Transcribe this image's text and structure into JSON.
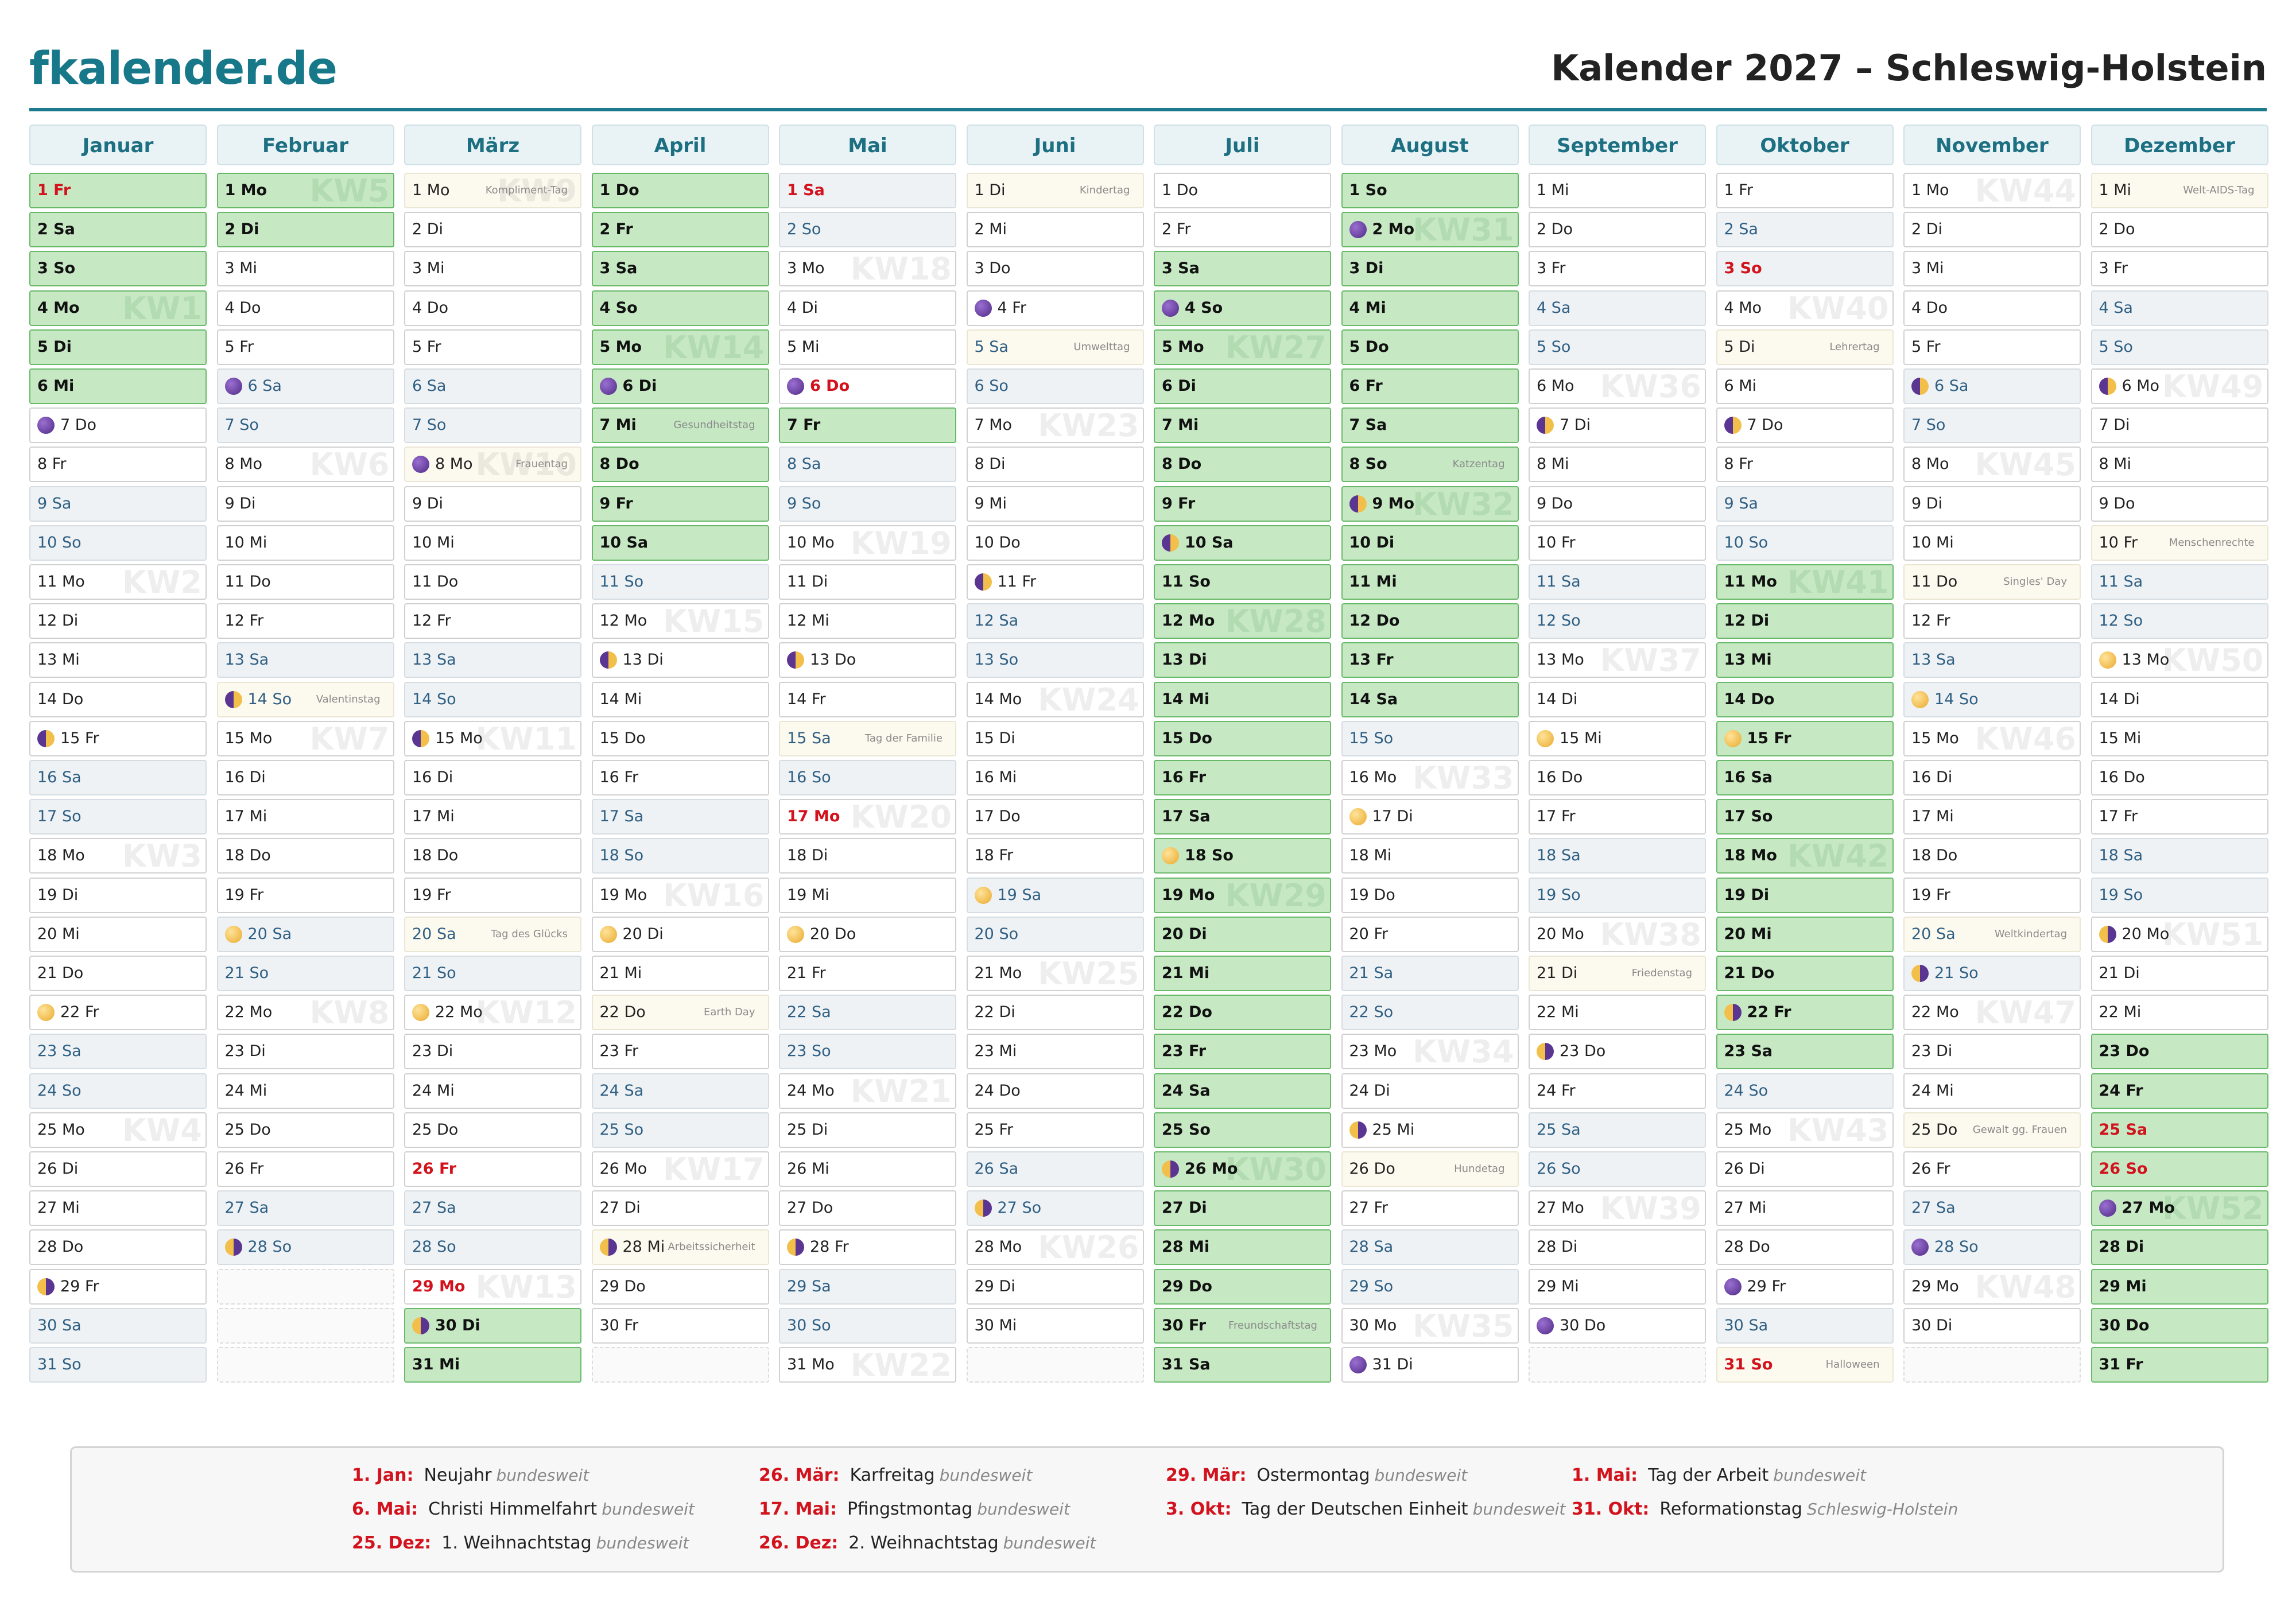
{
  "header": {
    "logo": "fkalender.de",
    "title": "Kalender 2027 – Schleswig-Holstein"
  },
  "months": [
    {
      "name": "Januar",
      "days": [
        "1 Fr",
        "2 Sa",
        "3 So",
        "4 Mo",
        "5 Di",
        "6 Mi",
        "7 Do",
        "8 Fr",
        "9 Sa",
        "10 So",
        "11 Mo",
        "12 Di",
        "13 Mi",
        "14 Do",
        "15 Fr",
        "16 Sa",
        "17 So",
        "18 Mo",
        "19 Di",
        "20 Mi",
        "21 Do",
        "22 Fr",
        "23 Sa",
        "24 So",
        "25 Mo",
        "26 Di",
        "27 Mi",
        "28 Do",
        "29 Fr",
        "30 Sa",
        "31 So"
      ],
      "weekend": [
        2,
        3,
        9,
        10,
        16,
        17,
        23,
        24,
        30,
        31
      ],
      "vacation": [
        1,
        2,
        3,
        4,
        5,
        6
      ],
      "holidays": [
        1
      ],
      "moons": {
        "new": [
          7
        ],
        "first": [
          15
        ],
        "full": [
          22
        ],
        "last": [
          29
        ]
      },
      "notes": {},
      "kw": {
        "4": "KW1",
        "11": "KW2",
        "18": "KW3",
        "25": "KW4"
      }
    },
    {
      "name": "Februar",
      "days": [
        "1 Mo",
        "2 Di",
        "3 Mi",
        "4 Do",
        "5 Fr",
        "6 Sa",
        "7 So",
        "8 Mo",
        "9 Di",
        "10 Mi",
        "11 Do",
        "12 Fr",
        "13 Sa",
        "14 So",
        "15 Mo",
        "16 Di",
        "17 Mi",
        "18 Do",
        "19 Fr",
        "20 Sa",
        "21 So",
        "22 Mo",
        "23 Di",
        "24 Mi",
        "25 Do",
        "26 Fr",
        "27 Sa",
        "28 So"
      ],
      "weekend": [
        6,
        7,
        13,
        14,
        20,
        21,
        27,
        28
      ],
      "vacation": [
        1,
        2
      ],
      "holidays": [],
      "moons": {
        "new": [
          6
        ],
        "first": [
          14
        ],
        "full": [
          20
        ],
        "last": [
          28
        ]
      },
      "notes": {
        "14": "Valentinstag"
      },
      "kw": {
        "1": "KW5",
        "8": "KW6",
        "15": "KW7",
        "22": "KW8"
      }
    },
    {
      "name": "März",
      "days": [
        "1 Mo",
        "2 Di",
        "3 Mi",
        "4 Do",
        "5 Fr",
        "6 Sa",
        "7 So",
        "8 Mo",
        "9 Di",
        "10 Mi",
        "11 Do",
        "12 Fr",
        "13 Sa",
        "14 So",
        "15 Mo",
        "16 Di",
        "17 Mi",
        "18 Do",
        "19 Fr",
        "20 Sa",
        "21 So",
        "22 Mo",
        "23 Di",
        "24 Mi",
        "25 Do",
        "26 Fr",
        "27 Sa",
        "28 So",
        "29 Mo",
        "30 Di",
        "31 Mi"
      ],
      "weekend": [
        6,
        7,
        13,
        14,
        20,
        21,
        27,
        28
      ],
      "vacation": [
        30,
        31
      ],
      "holidays": [
        26,
        29
      ],
      "moons": {
        "new": [
          8
        ],
        "first": [
          15
        ],
        "full": [
          22
        ],
        "last": [
          30
        ]
      },
      "notes": {
        "1": "Kompliment-Tag",
        "8": "Frauentag",
        "20": "Tag des Glücks"
      },
      "kw": {
        "1": "KW9",
        "8": "KW10",
        "15": "KW11",
        "22": "KW12",
        "29": "KW13"
      }
    },
    {
      "name": "April",
      "days": [
        "1 Do",
        "2 Fr",
        "3 Sa",
        "4 So",
        "5 Mo",
        "6 Di",
        "7 Mi",
        "8 Do",
        "9 Fr",
        "10 Sa",
        "11 So",
        "12 Mo",
        "13 Di",
        "14 Mi",
        "15 Do",
        "16 Fr",
        "17 Sa",
        "18 So",
        "19 Mo",
        "20 Di",
        "21 Mi",
        "22 Do",
        "23 Fr",
        "24 Sa",
        "25 So",
        "26 Mo",
        "27 Di",
        "28 Mi",
        "29 Do",
        "30 Fr"
      ],
      "weekend": [
        3,
        4,
        10,
        11,
        17,
        18,
        24,
        25
      ],
      "vacation": [
        1,
        2,
        3,
        4,
        5,
        6,
        7,
        8,
        9,
        10
      ],
      "holidays": [],
      "moons": {
        "new": [
          6
        ],
        "first": [
          13
        ],
        "full": [
          20
        ],
        "last": [
          28
        ]
      },
      "notes": {
        "7": "Gesundheitstag",
        "22": "Earth Day",
        "28": "Arbeitssicherheit"
      },
      "kw": {
        "5": "KW14",
        "12": "KW15",
        "19": "KW16",
        "26": "KW17"
      }
    },
    {
      "name": "Mai",
      "days": [
        "1 Sa",
        "2 So",
        "3 Mo",
        "4 Di",
        "5 Mi",
        "6 Do",
        "7 Fr",
        "8 Sa",
        "9 So",
        "10 Mo",
        "11 Di",
        "12 Mi",
        "13 Do",
        "14 Fr",
        "15 Sa",
        "16 So",
        "17 Mo",
        "18 Di",
        "19 Mi",
        "20 Do",
        "21 Fr",
        "22 Sa",
        "23 So",
        "24 Mo",
        "25 Di",
        "26 Mi",
        "27 Do",
        "28 Fr",
        "29 Sa",
        "30 So",
        "31 Mo"
      ],
      "weekend": [
        1,
        2,
        8,
        9,
        15,
        16,
        22,
        23,
        29,
        30
      ],
      "vacation": [
        7
      ],
      "holidays": [
        1,
        6,
        17
      ],
      "moons": {
        "new": [
          6
        ],
        "first": [
          13
        ],
        "full": [
          20
        ],
        "last": [
          28
        ]
      },
      "notes": {
        "15": "Tag der Familie"
      },
      "kw": {
        "3": "KW18",
        "10": "KW19",
        "17": "KW20",
        "24": "KW21",
        "31": "KW22"
      }
    },
    {
      "name": "Juni",
      "days": [
        "1 Di",
        "2 Mi",
        "3 Do",
        "4 Fr",
        "5 Sa",
        "6 So",
        "7 Mo",
        "8 Di",
        "9 Mi",
        "10 Do",
        "11 Fr",
        "12 Sa",
        "13 So",
        "14 Mo",
        "15 Di",
        "16 Mi",
        "17 Do",
        "18 Fr",
        "19 Sa",
        "20 So",
        "21 Mo",
        "22 Di",
        "23 Mi",
        "24 Do",
        "25 Fr",
        "26 Sa",
        "27 So",
        "28 Mo",
        "29 Di",
        "30 Mi"
      ],
      "weekend": [
        5,
        6,
        12,
        13,
        19,
        20,
        26,
        27
      ],
      "vacation": [],
      "holidays": [],
      "moons": {
        "new": [
          4
        ],
        "first": [
          11
        ],
        "full": [
          19
        ],
        "last": [
          27
        ]
      },
      "notes": {
        "1": "Kindertag",
        "5": "Umwelttag"
      },
      "kw": {
        "7": "KW23",
        "14": "KW24",
        "21": "KW25",
        "28": "KW26"
      }
    },
    {
      "name": "Juli",
      "days": [
        "1 Do",
        "2 Fr",
        "3 Sa",
        "4 So",
        "5 Mo",
        "6 Di",
        "7 Mi",
        "8 Do",
        "9 Fr",
        "10 Sa",
        "11 So",
        "12 Mo",
        "13 Di",
        "14 Mi",
        "15 Do",
        "16 Fr",
        "17 Sa",
        "18 So",
        "19 Mo",
        "20 Di",
        "21 Mi",
        "22 Do",
        "23 Fr",
        "24 Sa",
        "25 So",
        "26 Mo",
        "27 Di",
        "28 Mi",
        "29 Do",
        "30 Fr",
        "31 Sa"
      ],
      "weekend": [
        3,
        4,
        10,
        11,
        17,
        18,
        24,
        25,
        31
      ],
      "vacation": [
        3,
        4,
        5,
        6,
        7,
        8,
        9,
        10,
        11,
        12,
        13,
        14,
        15,
        16,
        17,
        18,
        19,
        20,
        21,
        22,
        23,
        24,
        25,
        26,
        27,
        28,
        29,
        30,
        31
      ],
      "holidays": [],
      "moons": {
        "new": [
          4
        ],
        "first": [
          10
        ],
        "full": [
          18
        ],
        "last": [
          26
        ]
      },
      "notes": {
        "30": "Freundschaftstag"
      },
      "kw": {
        "5": "KW27",
        "12": "KW28",
        "19": "KW29",
        "26": "KW30"
      }
    },
    {
      "name": "August",
      "days": [
        "1 So",
        "2 Mo",
        "3 Di",
        "4 Mi",
        "5 Do",
        "6 Fr",
        "7 Sa",
        "8 So",
        "9 Mo",
        "10 Di",
        "11 Mi",
        "12 Do",
        "13 Fr",
        "14 Sa",
        "15 So",
        "16 Mo",
        "17 Di",
        "18 Mi",
        "19 Do",
        "20 Fr",
        "21 Sa",
        "22 So",
        "23 Mo",
        "24 Di",
        "25 Mi",
        "26 Do",
        "27 Fr",
        "28 Sa",
        "29 So",
        "30 Mo",
        "31 Di"
      ],
      "weekend": [
        1,
        7,
        8,
        14,
        15,
        21,
        22,
        28,
        29
      ],
      "vacation": [
        1,
        2,
        3,
        4,
        5,
        6,
        7,
        8,
        9,
        10,
        11,
        12,
        13,
        14
      ],
      "holidays": [],
      "moons": {
        "new": [
          2,
          31
        ],
        "first": [
          9
        ],
        "full": [
          17
        ],
        "last": [
          25
        ]
      },
      "notes": {
        "8": "Katzentag",
        "26": "Hundetag"
      },
      "kw": {
        "2": "KW31",
        "9": "KW32",
        "16": "KW33",
        "23": "KW34",
        "30": "KW35"
      }
    },
    {
      "name": "September",
      "days": [
        "1 Mi",
        "2 Do",
        "3 Fr",
        "4 Sa",
        "5 So",
        "6 Mo",
        "7 Di",
        "8 Mi",
        "9 Do",
        "10 Fr",
        "11 Sa",
        "12 So",
        "13 Mo",
        "14 Di",
        "15 Mi",
        "16 Do",
        "17 Fr",
        "18 Sa",
        "19 So",
        "20 Mo",
        "21 Di",
        "22 Mi",
        "23 Do",
        "24 Fr",
        "25 Sa",
        "26 So",
        "27 Mo",
        "28 Di",
        "29 Mi",
        "30 Do"
      ],
      "weekend": [
        4,
        5,
        11,
        12,
        18,
        19,
        25,
        26
      ],
      "vacation": [],
      "holidays": [],
      "moons": {
        "new": [
          30
        ],
        "first": [
          7
        ],
        "full": [
          15
        ],
        "last": [
          23
        ]
      },
      "notes": {
        "21": "Friedenstag"
      },
      "kw": {
        "6": "KW36",
        "13": "KW37",
        "20": "KW38",
        "27": "KW39"
      }
    },
    {
      "name": "Oktober",
      "days": [
        "1 Fr",
        "2 Sa",
        "3 So",
        "4 Mo",
        "5 Di",
        "6 Mi",
        "7 Do",
        "8 Fr",
        "9 Sa",
        "10 So",
        "11 Mo",
        "12 Di",
        "13 Mi",
        "14 Do",
        "15 Fr",
        "16 Sa",
        "17 So",
        "18 Mo",
        "19 Di",
        "20 Mi",
        "21 Do",
        "22 Fr",
        "23 Sa",
        "24 So",
        "25 Mo",
        "26 Di",
        "27 Mi",
        "28 Do",
        "29 Fr",
        "30 Sa",
        "31 So"
      ],
      "weekend": [
        2,
        3,
        9,
        10,
        16,
        17,
        23,
        24,
        30,
        31
      ],
      "vacation": [
        11,
        12,
        13,
        14,
        15,
        16,
        17,
        18,
        19,
        20,
        21,
        22,
        23
      ],
      "holidays": [
        3,
        31
      ],
      "moons": {
        "new": [
          29
        ],
        "first": [
          7
        ],
        "full": [
          15
        ],
        "last": [
          22
        ]
      },
      "notes": {
        "5": "Lehrertag",
        "31": "Halloween"
      },
      "kw": {
        "4": "KW40",
        "11": "KW41",
        "18": "KW42",
        "25": "KW43"
      }
    },
    {
      "name": "November",
      "days": [
        "1 Mo",
        "2 Di",
        "3 Mi",
        "4 Do",
        "5 Fr",
        "6 Sa",
        "7 So",
        "8 Mo",
        "9 Di",
        "10 Mi",
        "11 Do",
        "12 Fr",
        "13 Sa",
        "14 So",
        "15 Mo",
        "16 Di",
        "17 Mi",
        "18 Do",
        "19 Fr",
        "20 Sa",
        "21 So",
        "22 Mo",
        "23 Di",
        "24 Mi",
        "25 Do",
        "26 Fr",
        "27 Sa",
        "28 So",
        "29 Mo",
        "30 Di"
      ],
      "weekend": [
        6,
        7,
        13,
        14,
        20,
        21,
        27,
        28
      ],
      "vacation": [],
      "holidays": [],
      "moons": {
        "new": [
          28
        ],
        "first": [
          6
        ],
        "full": [
          14
        ],
        "last": [
          21
        ]
      },
      "notes": {
        "11": "Singles' Day",
        "20": "Weltkindertag",
        "25": "Gewalt gg. Frauen"
      },
      "kw": {
        "1": "KW44",
        "8": "KW45",
        "15": "KW46",
        "22": "KW47",
        "29": "KW48"
      }
    },
    {
      "name": "Dezember",
      "days": [
        "1 Mi",
        "2 Do",
        "3 Fr",
        "4 Sa",
        "5 So",
        "6 Mo",
        "7 Di",
        "8 Mi",
        "9 Do",
        "10 Fr",
        "11 Sa",
        "12 So",
        "13 Mo",
        "14 Di",
        "15 Mi",
        "16 Do",
        "17 Fr",
        "18 Sa",
        "19 So",
        "20 Mo",
        "21 Di",
        "22 Mi",
        "23 Do",
        "24 Fr",
        "25 Sa",
        "26 So",
        "27 Mo",
        "28 Di",
        "29 Mi",
        "30 Do",
        "31 Fr"
      ],
      "weekend": [
        4,
        5,
        11,
        12,
        18,
        19,
        25,
        26
      ],
      "vacation": [
        23,
        24,
        25,
        26,
        27,
        28,
        29,
        30,
        31
      ],
      "holidays": [
        25,
        26
      ],
      "moons": {
        "new": [
          27
        ],
        "first": [
          6
        ],
        "full": [
          13
        ],
        "last": [
          20
        ]
      },
      "notes": {
        "1": "Welt-AIDS-Tag",
        "10": "Menschenrechte"
      },
      "kw": {
        "6": "KW49",
        "13": "KW50",
        "20": "KW51",
        "27": "KW52"
      }
    }
  ],
  "holidays": [
    {
      "date": "1. Jan:",
      "name": "Neujahr",
      "scope": "bundesweit"
    },
    {
      "date": "26. Mär:",
      "name": "Karfreitag",
      "scope": "bundesweit"
    },
    {
      "date": "29. Mär:",
      "name": "Ostermontag",
      "scope": "bundesweit"
    },
    {
      "date": "1. Mai:",
      "name": "Tag der Arbeit",
      "scope": "bundesweit"
    },
    {
      "date": "6. Mai:",
      "name": "Christi Himmelfahrt",
      "scope": "bundesweit"
    },
    {
      "date": "17. Mai:",
      "name": "Pfingstmontag",
      "scope": "bundesweit"
    },
    {
      "date": "3. Okt:",
      "name": "Tag der Deutschen Einheit",
      "scope": "bundesweit"
    },
    {
      "date": "31. Okt:",
      "name": "Reformationstag",
      "scope": "Schleswig-Holstein"
    },
    {
      "date": "25. Dez:",
      "name": "1. Weihnachtstag",
      "scope": "bundesweit"
    },
    {
      "date": "26. Dez:",
      "name": "2. Weihnachtstag",
      "scope": "bundesweit"
    }
  ]
}
